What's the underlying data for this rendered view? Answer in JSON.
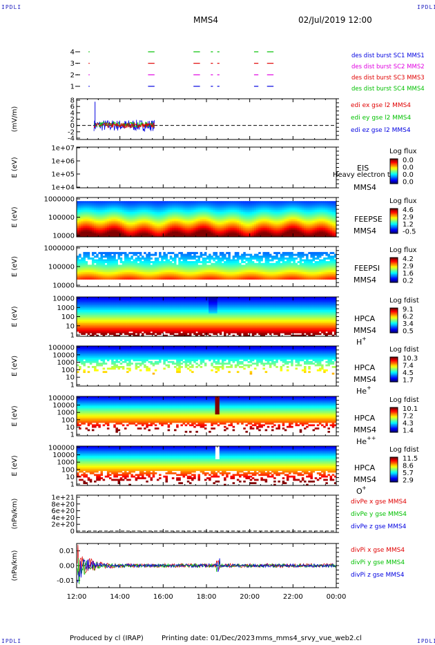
{
  "corner_label": "IPDLI",
  "header": {
    "spacecraft": "MMS4",
    "datetime": "02/Jul/2019 12:00"
  },
  "footer": {
    "produced_by": "Produced by cl (IRAP)",
    "printing_date": "Printing date: 01/Dec/2023",
    "file_name": "mms_mms4_srvy_vue_web2.cl"
  },
  "time_axis": {
    "ticks": [
      "12:00",
      "14:00",
      "16:00",
      "18:00",
      "20:00",
      "22:00",
      "00:00"
    ],
    "range_hours": [
      12,
      24
    ]
  },
  "colors": {
    "red": "#e00000",
    "green": "#00c000",
    "blue": "#0000e0",
    "magenta": "#e000e0",
    "label_blue": "#2020c0"
  },
  "chart_data": [
    {
      "id": "burst",
      "type": "scatter",
      "ylim": [
        0.5,
        4.5
      ],
      "yticks": [
        "4",
        "3",
        "2",
        "1"
      ],
      "legend": [
        {
          "text": "des dist burst SC1 MMS1",
          "color": "#0000e0"
        },
        {
          "text": "des dist burst SC2 MMS2",
          "color": "#e000e0"
        },
        {
          "text": "des dist burst SC3 MMS3",
          "color": "#e00000"
        },
        {
          "text": "des dist burst SC4 MMS4",
          "color": "#00c000"
        }
      ],
      "series": [
        {
          "level": 1,
          "color": "#0000e0"
        },
        {
          "level": 2,
          "color": "#e000e0"
        },
        {
          "level": 3,
          "color": "#e00000"
        },
        {
          "level": 4,
          "color": "#00c000"
        }
      ],
      "intervals_hours": [
        [
          12.55,
          12.6
        ],
        [
          15.3,
          15.6
        ],
        [
          17.4,
          17.7
        ],
        [
          18.2,
          18.3
        ],
        [
          18.5,
          18.6
        ],
        [
          20.2,
          20.4
        ],
        [
          20.8,
          21.1
        ]
      ]
    },
    {
      "id": "edi",
      "type": "line",
      "ylabel": "(mV/m)",
      "yticks": [
        "8",
        "6",
        "4",
        "2",
        "0",
        "-2",
        "-4"
      ],
      "ylim": [
        -4,
        8
      ],
      "legend": [
        {
          "text": "edi ex gse l2 MMS4",
          "color": "#e00000"
        },
        {
          "text": "edi ey gse l2 MMS4",
          "color": "#00c000"
        },
        {
          "text": "edi ez gse l2 MMS4",
          "color": "#0000e0"
        }
      ],
      "xlim_data_hours": [
        12.8,
        15.6
      ]
    },
    {
      "id": "eis",
      "type": "heatmap",
      "ylabel": "E (eV)",
      "yticks": [
        "1e+07",
        "1e+06",
        "1e+05",
        "1e+04"
      ],
      "instrument": "EIS",
      "spacecraft": "MMS4",
      "overlay_text": "Heavy electron to",
      "colorbar": {
        "title": "Log flux",
        "ticks": [
          "0.0",
          "0.0",
          "0.0",
          "0.0"
        ]
      }
    },
    {
      "id": "feepse",
      "type": "heatmap",
      "ylabel": "E (eV)",
      "yticks": [
        "1000000",
        "100000",
        "10000"
      ],
      "instrument": "FEEPSE",
      "spacecraft": "MMS4",
      "colorbar": {
        "title": "Log flux",
        "ticks": [
          "4.6",
          "2.9",
          "1.2",
          "-0.5"
        ]
      }
    },
    {
      "id": "feepsi",
      "type": "heatmap",
      "ylabel": "E (eV)",
      "yticks": [
        "1000000",
        "100000",
        "10000"
      ],
      "instrument": "FEEPSI",
      "spacecraft": "MMS4",
      "colorbar": {
        "title": "Log flux",
        "ticks": [
          "4.2",
          "2.9",
          "1.6",
          "0.2"
        ]
      }
    },
    {
      "id": "hpca_h",
      "type": "heatmap",
      "ylabel": "E (eV)",
      "yticks": [
        "10000",
        "1000",
        "100",
        "10",
        "1"
      ],
      "instrument": "HPCA",
      "spacecraft": "MMS4",
      "species": "H",
      "species_charge": "+",
      "colorbar": {
        "title": "Log fdist",
        "ticks": [
          "9.1",
          "6.2",
          "3.4",
          "0.5"
        ]
      }
    },
    {
      "id": "hpca_he",
      "type": "heatmap",
      "ylabel": "E (eV)",
      "yticks": [
        "100000",
        "10000",
        "1000",
        "100",
        "10",
        "1"
      ],
      "instrument": "HPCA",
      "spacecraft": "MMS4",
      "species": "He",
      "species_charge": "+",
      "colorbar": {
        "title": "Log fdist",
        "ticks": [
          "10.3",
          "7.4",
          "4.5",
          "1.7"
        ]
      }
    },
    {
      "id": "hpca_hepp",
      "type": "heatmap",
      "ylabel": "E (eV)",
      "yticks": [
        "100000",
        "10000",
        "1000",
        "100",
        "10",
        "1"
      ],
      "instrument": "HPCA",
      "spacecraft": "MMS4",
      "species": "He",
      "species_charge": "++",
      "colorbar": {
        "title": "Log fdist",
        "ticks": [
          "10.1",
          "7.2",
          "4.3",
          "1.4"
        ]
      }
    },
    {
      "id": "hpca_o",
      "type": "heatmap",
      "ylabel": "E (eV)",
      "yticks": [
        "100000",
        "10000",
        "1000",
        "100",
        "10",
        "1"
      ],
      "instrument": "HPCA",
      "spacecraft": "MMS4",
      "species": "O",
      "species_charge": "+",
      "colorbar": {
        "title": "Log fdist",
        "ticks": [
          "11.5",
          "8.6",
          "5.7",
          "2.9"
        ]
      }
    },
    {
      "id": "dpe",
      "type": "line",
      "ylabel": "(nPa/km)",
      "yticks": [
        "1e+21",
        "8e+20",
        "6e+20",
        "4e+20",
        "2e+20",
        "0"
      ],
      "ylim": [
        0,
        1e+21
      ],
      "legend": [
        {
          "text": "divPe x gse MMS4",
          "color": "#e00000"
        },
        {
          "text": "divPe y gse MMS4",
          "color": "#00c000"
        },
        {
          "text": "divPe z gse MMS4",
          "color": "#0000e0"
        }
      ]
    },
    {
      "id": "dpi",
      "type": "line",
      "ylabel": "(nPa/km)",
      "yticks": [
        "0.01",
        "0.00",
        "-0.01"
      ],
      "ylim": [
        -0.015,
        0.015
      ],
      "legend": [
        {
          "text": "divPi x gse MMS4",
          "color": "#e00000"
        },
        {
          "text": "divPi y gse MMS4",
          "color": "#00c000"
        },
        {
          "text": "divPi z gse MMS4",
          "color": "#0000e0"
        }
      ]
    }
  ]
}
